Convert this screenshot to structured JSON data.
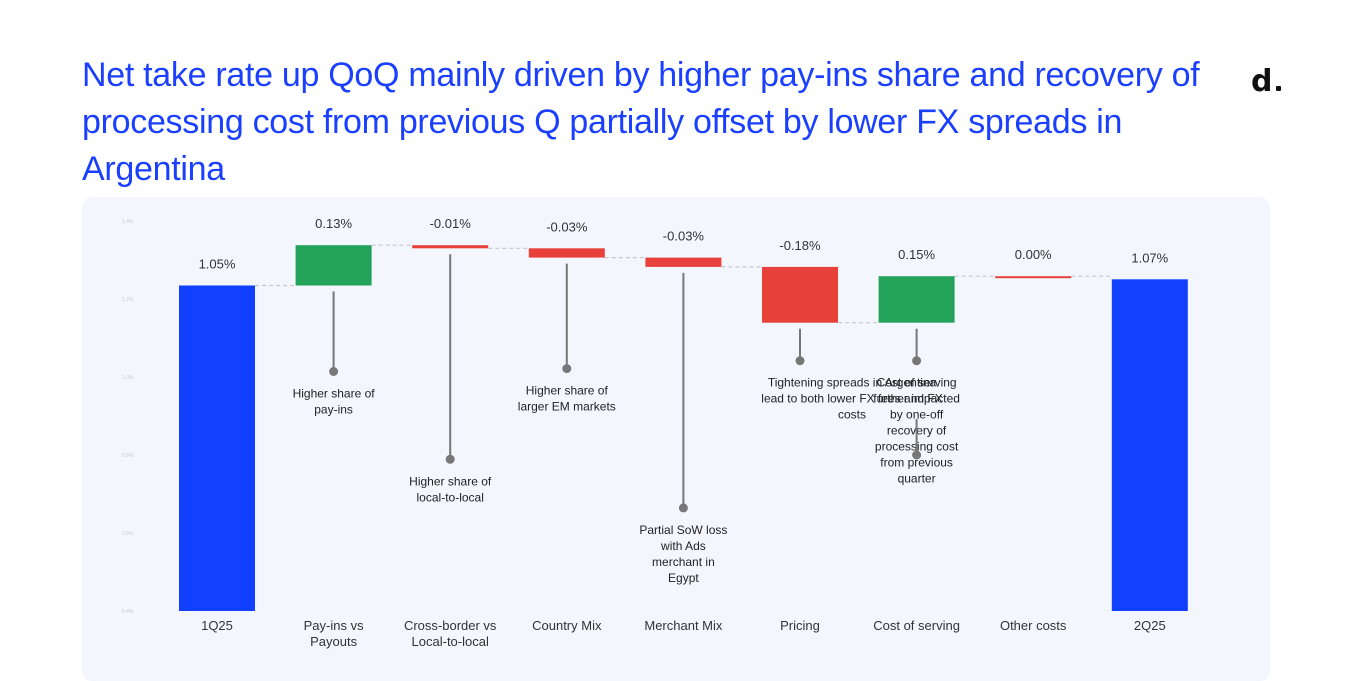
{
  "title": "Net take rate up QoQ mainly driven by higher pay-ins share and recovery of processing cost from previous Q partially offset by lower FX spreads in Argentina",
  "logo_text": "d",
  "chart_data": {
    "type": "waterfall",
    "ylim": [
      0.0,
      1.35
    ],
    "y_ticks": [
      "1.4%",
      "1.2%",
      "1.0%",
      "0.8%",
      "0.6%",
      "0.4%"
    ],
    "colors": {
      "total": "#1240ff",
      "increase": "#23a25a",
      "decrease": "#e8403a",
      "connector": "#c9c9c9",
      "annotation": "#777777"
    },
    "items": [
      {
        "category": "1Q25",
        "label": "1.05%",
        "kind": "total",
        "value": 1.05
      },
      {
        "category": "Pay-ins vs\nPayouts",
        "label": "0.13%",
        "kind": "increase",
        "value": 0.13,
        "annotation": "Higher share of\npay-ins"
      },
      {
        "category": "Cross-border vs\nLocal-to-local",
        "label": "-0.01%",
        "kind": "decrease",
        "value": -0.01,
        "annotation": "Higher share of\nlocal-to-local"
      },
      {
        "category": "Country Mix",
        "label": "-0.03%",
        "kind": "decrease",
        "value": -0.03,
        "annotation": "Higher share of\nlarger EM markets"
      },
      {
        "category": "Merchant Mix",
        "label": "-0.03%",
        "kind": "decrease",
        "value": -0.03,
        "annotation": "Partial SoW loss\nwith Ads\nmerchant in\nEgypt"
      },
      {
        "category": "Pricing",
        "label": "-0.18%",
        "kind": "decrease",
        "value": -0.18,
        "annotation": "Tightening spreads in Argentina\nlead to both lower FX fees and FX\ncosts"
      },
      {
        "category": "Cost of serving",
        "label": "0.15%",
        "kind": "increase",
        "value": 0.15,
        "annotation": "Cost of serving\nfurther impacted\nby one-off\nrecovery of\nprocessing cost\nfrom previous\nquarter"
      },
      {
        "category": "Other costs",
        "label": "0.00%",
        "kind": "flat",
        "value": 0.0
      },
      {
        "category": "2Q25",
        "label": "1.07%",
        "kind": "total",
        "value": 1.07
      }
    ]
  }
}
